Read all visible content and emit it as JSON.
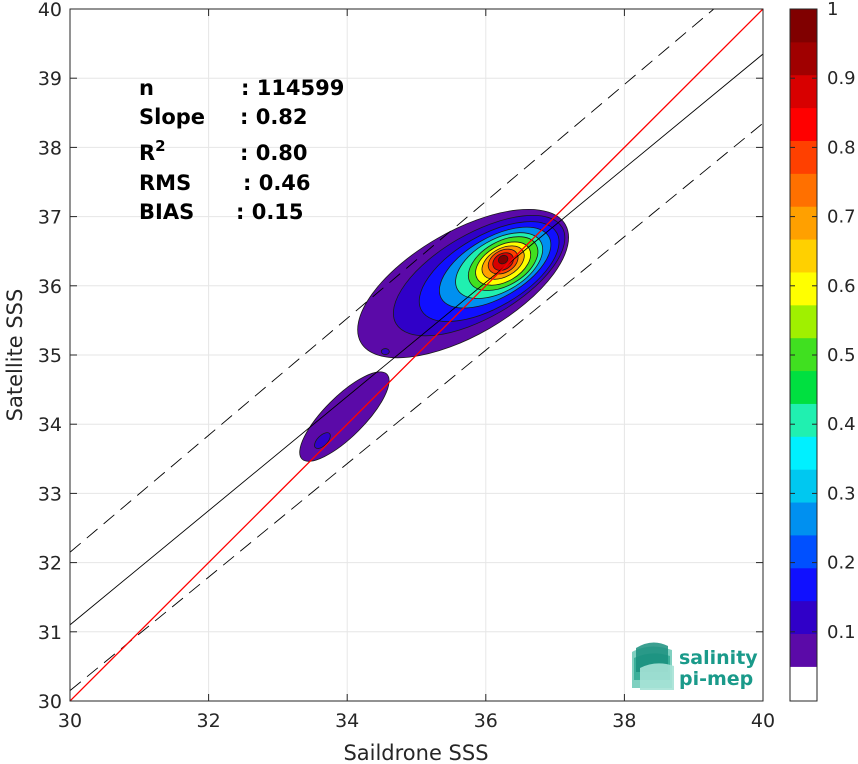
{
  "chart_data": {
    "type": "heatmap",
    "xlabel": "Saildrone SSS",
    "ylabel": "Satellite SSS",
    "xlim": [
      30,
      40
    ],
    "ylim": [
      30,
      40
    ],
    "xticks": [
      30,
      32,
      34,
      36,
      38,
      40
    ],
    "yticks": [
      30,
      31,
      32,
      33,
      34,
      35,
      36,
      37,
      38,
      39,
      40
    ],
    "grid": true,
    "stats": [
      {
        "label": "n",
        "value": ": 114599"
      },
      {
        "label": "Slope",
        "value": ": 0.82"
      },
      {
        "label": "R",
        "superscript": "2",
        "value": ": 0.80"
      },
      {
        "label": "RMS",
        "value": ": 0.46"
      },
      {
        "label": "BIAS",
        "value": ": 0.15"
      }
    ],
    "reference_lines": {
      "identity": {
        "color": "#ff0000",
        "slope": 1,
        "intercept": 0
      },
      "fit": {
        "color": "#000000",
        "points": [
          [
            30,
            31.1
          ],
          [
            40,
            39.35
          ]
        ]
      },
      "upper_bound": {
        "style": "dashed",
        "points": [
          [
            30,
            32.15
          ],
          [
            40,
            40.6
          ]
        ]
      },
      "lower_bound": {
        "style": "dashed",
        "points": [
          [
            30,
            30.15
          ],
          [
            40,
            38.35
          ]
        ]
      }
    },
    "colorbar": {
      "range": [
        0,
        1
      ],
      "ticks": [
        "0.1",
        "0.2",
        "0.3",
        "0.4",
        "0.5",
        "0.6",
        "0.7",
        "0.8",
        "0.9",
        "1"
      ],
      "levels": [
        "#5b0aa8",
        "#3000c8",
        "#1010ff",
        "#0050ff",
        "#0090f0",
        "#00c8f0",
        "#00f0ff",
        "#20f0b0",
        "#00e040",
        "#40e020",
        "#a0f000",
        "#ffff00",
        "#ffd000",
        "#ffa000",
        "#ff7000",
        "#ff4000",
        "#ff0000",
        "#d80000",
        "#a00000",
        "#800000"
      ]
    },
    "density_clusters": [
      {
        "center": [
          36.25,
          36.35
        ],
        "rotation_deg": -30
      },
      {
        "center": [
          33.7,
          33.85
        ],
        "rotation_deg": -45
      }
    ]
  },
  "logo": {
    "line1": "salinity",
    "line2": "pi-mep",
    "color": "#1a9a8a"
  }
}
